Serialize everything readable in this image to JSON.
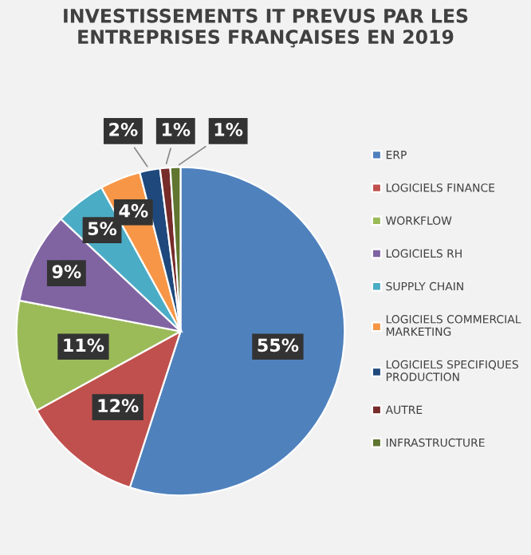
{
  "chart_data": {
    "type": "pie",
    "title": "INVESTISSEMENTS IT PREVUS PAR LES ENTREPRISES FRANÇAISES EN 2019",
    "categories": [
      "ERP",
      "LOGICIELS FINANCE",
      "WORKFLOW",
      "LOGICIELS RH",
      "SUPPLY CHAIN",
      "LOGICIELS COMMERCIAL MARKETING",
      "LOGICIELS SPECIFIQUES PRODUCTION",
      "AUTRE",
      "INFRASTRUCTURE"
    ],
    "values": [
      55,
      12,
      11,
      9,
      5,
      4,
      2,
      1,
      1
    ],
    "colors": [
      "#4f81bd",
      "#c0504d",
      "#9bbb59",
      "#8064a2",
      "#4bacc6",
      "#f79646",
      "#1f497d",
      "#772c2a",
      "#5f7530"
    ],
    "value_labels": [
      "55%",
      "12%",
      "11%",
      "9%",
      "5%",
      "4%",
      "2%",
      "1%",
      "1%"
    ],
    "legend": "right"
  }
}
